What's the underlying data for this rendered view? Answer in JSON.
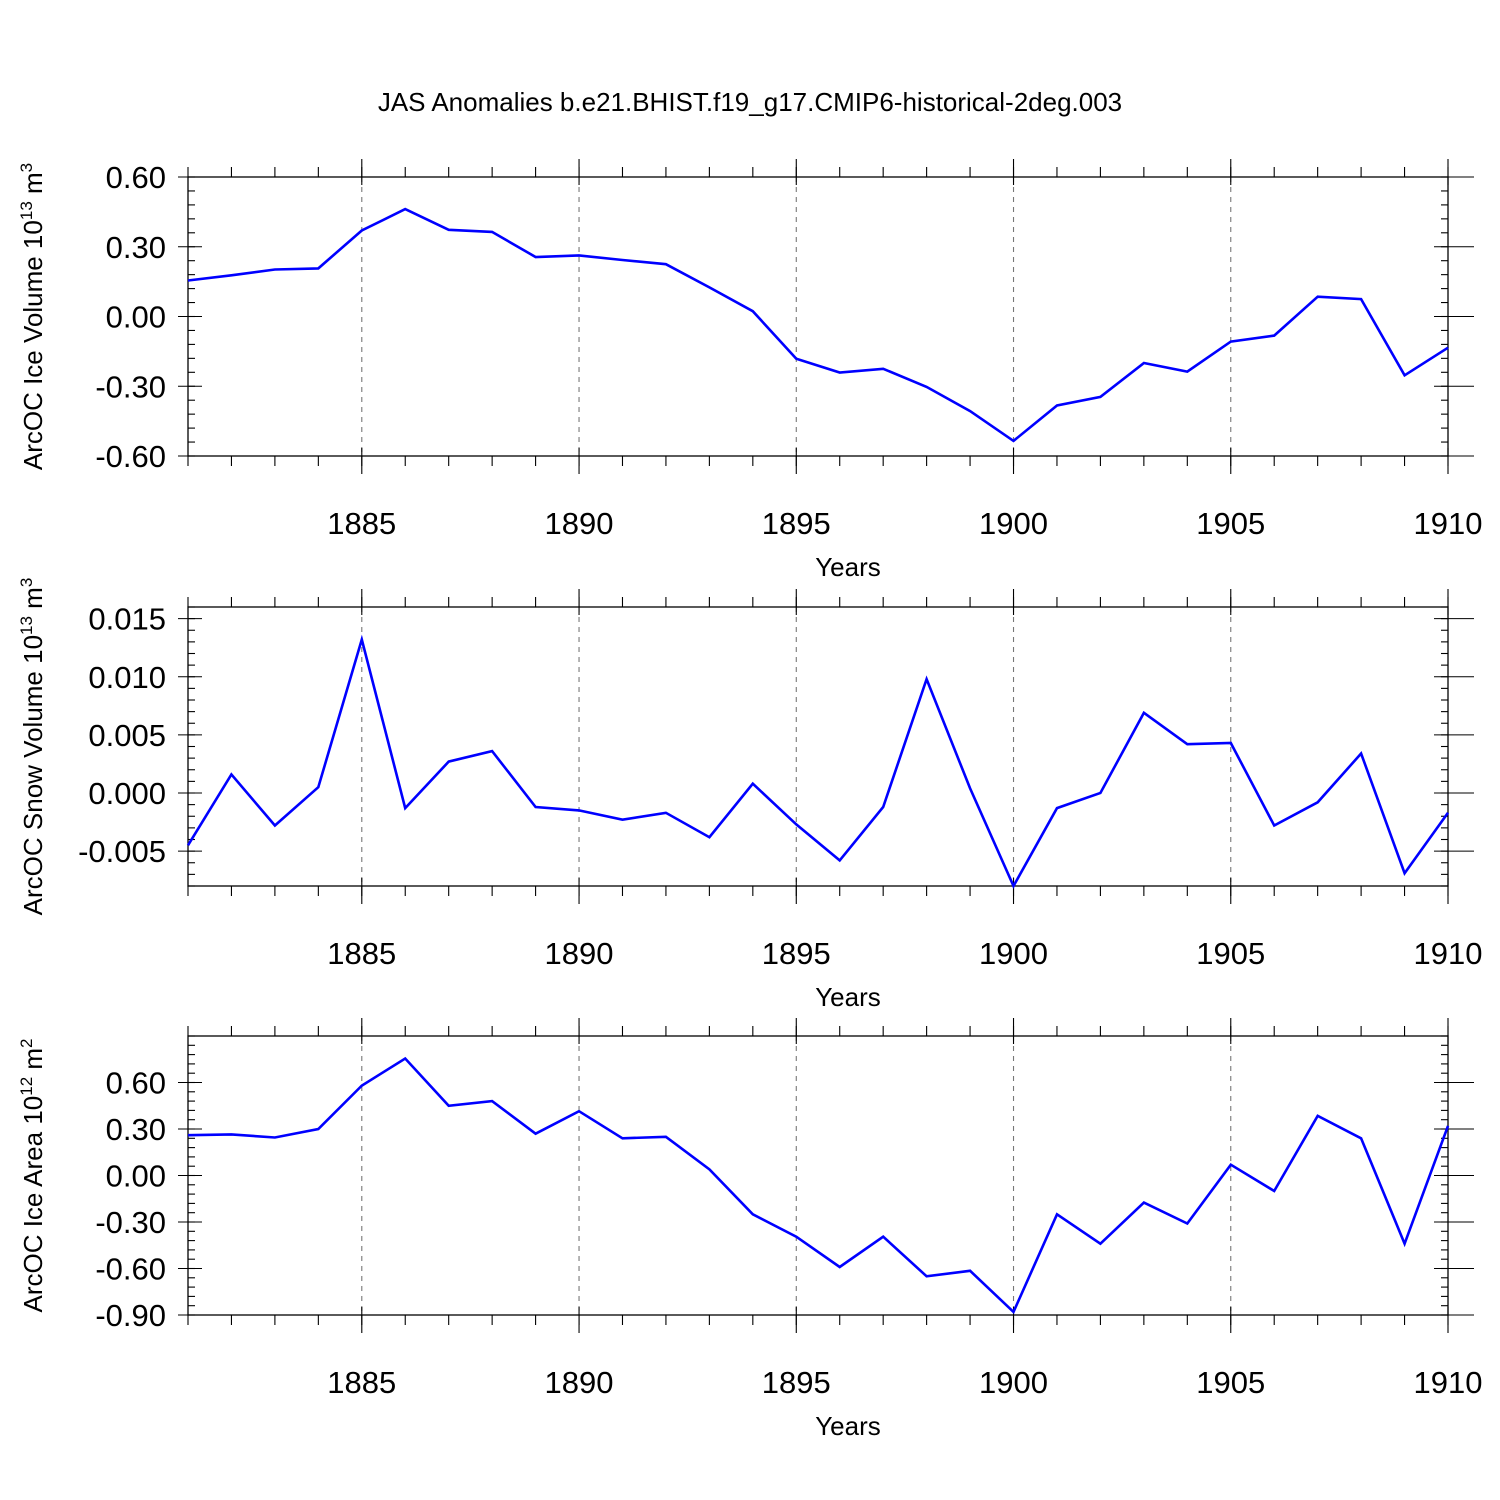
{
  "title": "JAS Anomalies b.e21.BHIST.f19_g17.CMIP6-historical-2deg.003",
  "colors": {
    "line": "#0000ff",
    "grid": "#777777"
  },
  "chart_data": [
    {
      "type": "line",
      "title": "JAS Anomalies b.e21.BHIST.f19_g17.CMIP6-historical-2deg.003",
      "xlabel": "Years",
      "ylabel": {
        "text": "ArcOC Ice Volume 10",
        "sup": "13",
        "unit": " m",
        "unit_sup": "3"
      },
      "xlim": [
        1881,
        1910
      ],
      "ylim": [
        -0.6,
        0.6
      ],
      "xticks": [
        1885,
        1890,
        1895,
        1900,
        1905,
        1910
      ],
      "yticks": [
        -0.6,
        -0.3,
        0.0,
        0.3,
        0.6
      ],
      "ytick_labels": [
        "-0.60",
        "-0.30",
        "0.00",
        "0.30",
        "0.60"
      ],
      "ystep_minor": 0.06,
      "x": [
        1881,
        1882,
        1883,
        1884,
        1885,
        1886,
        1887,
        1888,
        1889,
        1890,
        1891,
        1892,
        1893,
        1894,
        1895,
        1896,
        1897,
        1898,
        1899,
        1900,
        1901,
        1902,
        1903,
        1904,
        1905,
        1906,
        1907,
        1908,
        1909,
        1910
      ],
      "values": [
        0.155,
        0.177,
        0.202,
        0.207,
        0.37,
        0.462,
        0.373,
        0.364,
        0.256,
        0.263,
        0.243,
        0.225,
        0.125,
        0.023,
        -0.182,
        -0.241,
        -0.225,
        -0.303,
        -0.407,
        -0.535,
        -0.383,
        -0.346,
        -0.2,
        -0.237,
        -0.108,
        -0.082,
        0.085,
        0.075,
        -0.253,
        -0.134
      ]
    },
    {
      "type": "line",
      "xlabel": "Years",
      "ylabel": {
        "text": "ArcOC Snow Volume 10",
        "sup": "13",
        "unit": " m",
        "unit_sup": "3"
      },
      "xlim": [
        1881,
        1910
      ],
      "ylim": [
        -0.008,
        0.016
      ],
      "xticks": [
        1885,
        1890,
        1895,
        1900,
        1905,
        1910
      ],
      "yticks": [
        -0.005,
        0.0,
        0.005,
        0.01,
        0.015
      ],
      "ytick_labels": [
        "-0.005",
        "0.000",
        "0.005",
        "0.010",
        "0.015"
      ],
      "ystep_minor": 0.001,
      "x": [
        1881,
        1882,
        1883,
        1884,
        1885,
        1886,
        1887,
        1888,
        1889,
        1890,
        1891,
        1892,
        1893,
        1894,
        1895,
        1896,
        1897,
        1898,
        1899,
        1900,
        1901,
        1902,
        1903,
        1904,
        1905,
        1906,
        1907,
        1908,
        1909,
        1910
      ],
      "values": [
        -0.0045,
        0.0016,
        -0.0028,
        0.0005,
        0.0132,
        -0.0013,
        0.0027,
        0.0036,
        -0.0012,
        -0.0015,
        -0.0023,
        -0.0017,
        -0.0038,
        0.0008,
        -0.0027,
        -0.0058,
        -0.0012,
        0.0098,
        0.0004,
        -0.008,
        -0.0013,
        0.0,
        0.0069,
        0.0042,
        0.0043,
        -0.0028,
        -0.0008,
        0.0034,
        -0.0069,
        -0.0017
      ]
    },
    {
      "type": "line",
      "xlabel": "Years",
      "ylabel": {
        "text": "ArcOC Ice Area 10",
        "sup": "12",
        "unit": " m",
        "unit_sup": "2"
      },
      "xlim": [
        1881,
        1910
      ],
      "ylim": [
        -0.9,
        0.9
      ],
      "xticks": [
        1885,
        1890,
        1895,
        1900,
        1905,
        1910
      ],
      "yticks": [
        -0.9,
        -0.6,
        -0.3,
        0.0,
        0.3,
        0.6
      ],
      "ytick_labels": [
        "-0.90",
        "-0.60",
        "-0.30",
        "0.00",
        "0.30",
        "0.60"
      ],
      "ystep_minor": 0.06,
      "x": [
        1881,
        1882,
        1883,
        1884,
        1885,
        1886,
        1887,
        1888,
        1889,
        1890,
        1891,
        1892,
        1893,
        1894,
        1895,
        1896,
        1897,
        1898,
        1899,
        1900,
        1901,
        1902,
        1903,
        1904,
        1905,
        1906,
        1907,
        1908,
        1909,
        1910
      ],
      "values": [
        0.26,
        0.265,
        0.245,
        0.3,
        0.58,
        0.755,
        0.45,
        0.48,
        0.27,
        0.415,
        0.24,
        0.25,
        0.04,
        -0.25,
        -0.395,
        -0.59,
        -0.395,
        -0.65,
        -0.615,
        -0.88,
        -0.25,
        -0.44,
        -0.175,
        -0.31,
        0.07,
        -0.1,
        0.385,
        0.24,
        -0.44,
        0.32
      ]
    }
  ]
}
